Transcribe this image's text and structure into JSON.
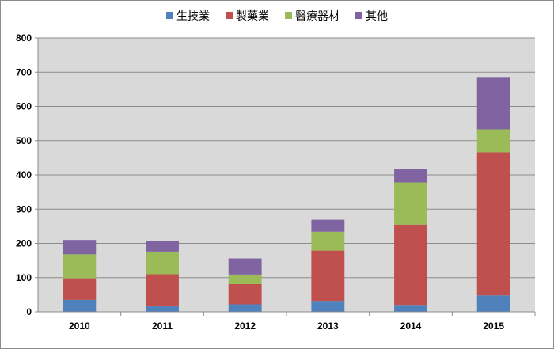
{
  "chart_data": {
    "type": "bar",
    "stacked": true,
    "categories": [
      "2010",
      "2011",
      "2012",
      "2013",
      "2014",
      "2015"
    ],
    "series": [
      {
        "name": "生技業",
        "color": "#4f81bd",
        "values": [
          35,
          16,
          22,
          32,
          18,
          48
        ]
      },
      {
        "name": "製藥業",
        "color": "#c0504d",
        "values": [
          63,
          94,
          59,
          147,
          237,
          418
        ]
      },
      {
        "name": "醫療器材",
        "color": "#9bbb59",
        "values": [
          70,
          66,
          28,
          55,
          123,
          67
        ]
      },
      {
        "name": "其他",
        "color": "#8064a2",
        "values": [
          42,
          31,
          47,
          35,
          40,
          153
        ]
      }
    ],
    "ylim": [
      0,
      800
    ],
    "yticks": [
      0,
      100,
      200,
      300,
      400,
      500,
      600,
      700,
      800
    ],
    "grid": true,
    "legend_position": "top",
    "plot_background": "#d9d9d9"
  }
}
